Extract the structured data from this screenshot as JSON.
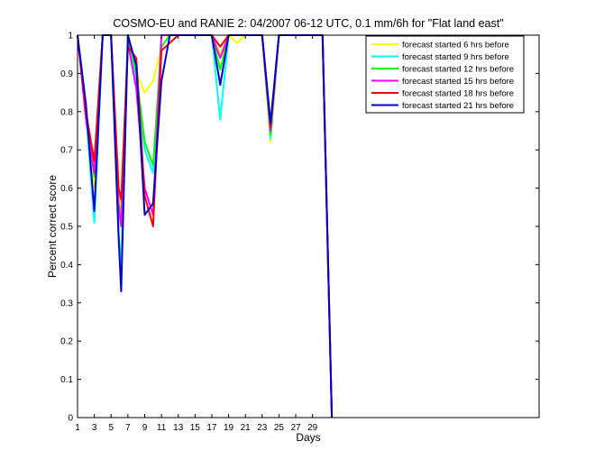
{
  "chart_data": {
    "type": "line",
    "title": "COSMO-EU and RANIE 2: 04/2007 06-12 UTC, 0.1 mm/6h for \"Flat land east\"",
    "xlabel": "Days",
    "ylabel": "Percent correct score",
    "xlim": [
      1,
      56
    ],
    "ylim": [
      0,
      1
    ],
    "xticks": [
      1,
      3,
      5,
      7,
      9,
      11,
      13,
      15,
      17,
      19,
      21,
      23,
      25,
      27,
      29
    ],
    "yticks": [
      0,
      0.1,
      0.2,
      0.3,
      0.4,
      0.5,
      0.6,
      0.7,
      0.8,
      0.9,
      1
    ],
    "grid": false,
    "legend_position": "top-right",
    "series": [
      {
        "name": "forecast started 6 hrs before",
        "color": "#ffff00",
        "x": [
          1,
          2,
          3,
          4,
          5,
          5.9,
          6.2,
          7,
          8,
          9,
          10,
          11,
          12,
          13,
          17,
          18,
          19,
          20,
          21,
          23,
          24,
          25,
          29,
          30.2,
          31.3
        ],
        "y": [
          1,
          0.82,
          0.6,
          1,
          1,
          0.6,
          0.55,
          1,
          0.9,
          0.85,
          0.88,
          0.97,
          1,
          1,
          1,
          0.95,
          1,
          0.98,
          1,
          1,
          0.72,
          1,
          1,
          1,
          0
        ]
      },
      {
        "name": "forecast started 9 hrs before",
        "color": "#00ffff",
        "x": [
          1,
          2,
          3,
          4,
          5,
          5.9,
          6.2,
          7,
          8,
          9,
          10,
          11,
          12,
          13,
          17,
          18,
          19,
          20,
          21,
          23,
          24,
          25,
          29,
          30.2,
          31.3
        ],
        "y": [
          1,
          0.8,
          0.51,
          1,
          1,
          0.48,
          0.4,
          1,
          0.88,
          0.7,
          0.64,
          1,
          1,
          1,
          1,
          0.78,
          1,
          1,
          1,
          1,
          0.73,
          1,
          1,
          1,
          0
        ]
      },
      {
        "name": "forecast started 12 hrs before",
        "color": "#00ff00",
        "x": [
          1,
          2,
          3,
          4,
          5,
          5.9,
          6.2,
          7,
          8,
          9,
          10,
          11,
          12,
          13,
          17,
          18,
          19,
          20,
          21,
          23,
          24,
          25,
          29,
          30.2,
          31.3
        ],
        "y": [
          1,
          0.8,
          0.63,
          1,
          1,
          0.56,
          0.53,
          1,
          0.9,
          0.72,
          0.66,
          0.97,
          1,
          1,
          1,
          0.91,
          1,
          1,
          1,
          1,
          0.74,
          1,
          1,
          1,
          0
        ]
      },
      {
        "name": "forecast started 15 hrs before",
        "color": "#ff00ff",
        "x": [
          1,
          2,
          3,
          4,
          5,
          5.9,
          6.2,
          7,
          8,
          9,
          10,
          11,
          12,
          13,
          17,
          18,
          19,
          20,
          21,
          23,
          24,
          25,
          29,
          30.2,
          31.3
        ],
        "y": [
          1,
          0.78,
          0.64,
          1,
          1,
          0.55,
          0.5,
          0.98,
          0.86,
          0.6,
          0.53,
          1,
          1,
          1,
          1,
          0.94,
          1,
          1,
          1,
          1,
          0.75,
          1,
          1,
          1,
          0
        ]
      },
      {
        "name": "forecast started 18 hrs before",
        "color": "#ff0000",
        "x": [
          1,
          2,
          3,
          4,
          5,
          5.9,
          6.2,
          7,
          8,
          9,
          10,
          11,
          12,
          13,
          17,
          18,
          19,
          20,
          21,
          23,
          24,
          25,
          29,
          30.2,
          31.3
        ],
        "y": [
          1,
          0.8,
          0.67,
          1,
          1,
          0.6,
          0.57,
          0.97,
          0.94,
          0.58,
          0.5,
          0.96,
          0.98,
          1,
          1,
          0.97,
          1,
          1,
          1,
          1,
          0.76,
          1,
          1,
          1,
          0
        ]
      },
      {
        "name": "forecast started 21 hrs before",
        "color": "#0000cd",
        "x": [
          1,
          2,
          3,
          4,
          5,
          5.9,
          6.2,
          7,
          8,
          9,
          10,
          11,
          12,
          13,
          17,
          18,
          19,
          20,
          21,
          23,
          24,
          25,
          29,
          30.2,
          31.3
        ],
        "y": [
          1,
          0.82,
          0.54,
          1,
          1,
          0.47,
          0.33,
          1,
          0.92,
          0.53,
          0.56,
          0.88,
          1,
          1,
          1,
          0.87,
          1,
          1,
          1,
          1,
          0.77,
          1,
          1,
          1,
          0
        ]
      }
    ]
  }
}
